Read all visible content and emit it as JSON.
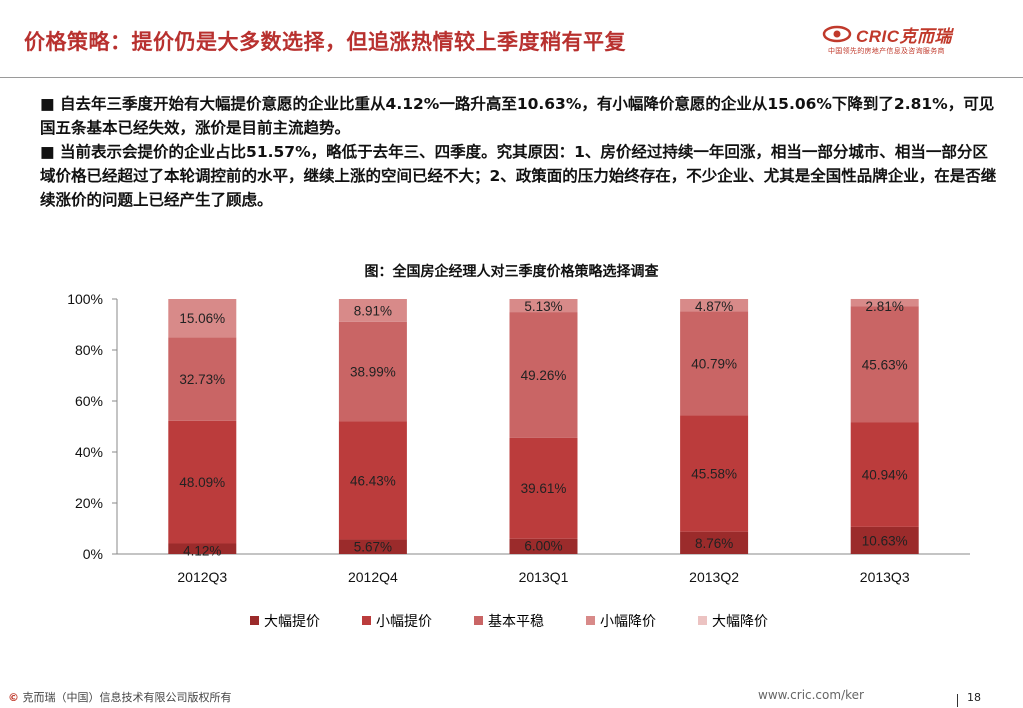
{
  "header": {
    "title": "价格策略：提价仍是大多数选择，但追涨热情较上季度稍有平复",
    "logo_text": "CRIC克而瑞",
    "logo_subtitle": "中国领先的房地产信息及咨询服务商"
  },
  "body": {
    "paragraphs": [
      "■ 自去年三季度开始有大幅提价意愿的企业比重从4.12%一路升高至10.63%，有小幅降价意愿的企业从15.06%下降到了2.81%，可见国五条基本已经失效，涨价是目前主流趋势。",
      "■ 当前表示会提价的企业占比51.57%，略低于去年三、四季度。究其原因：1、房价经过持续一年回涨，相当一部分城市、相当一部分区域价格已经超过了本轮调控前的水平，继续上涨的空间已经不大；2、政策面的压力始终存在，不少企业、尤其是全国性品牌企业，在是否继续涨价的问题上已经产生了顾虑。"
    ]
  },
  "chart_data": {
    "type": "bar",
    "stacked": true,
    "title": "图：全国房企经理人对三季度价格策略选择调查",
    "categories": [
      "2012Q3",
      "2012Q4",
      "2013Q1",
      "2013Q2",
      "2013Q3"
    ],
    "series": [
      {
        "name": "大幅提价",
        "color": "#9b2b2b",
        "values": [
          4.12,
          5.67,
          6.0,
          8.76,
          10.63
        ],
        "labels": [
          "4.12%",
          "5.67%",
          "6.00%",
          "8.76%",
          "10.63%"
        ]
      },
      {
        "name": "小幅提价",
        "color": "#bb3c3c",
        "values": [
          48.09,
          46.43,
          39.61,
          45.58,
          40.94
        ],
        "labels": [
          "48.09%",
          "46.43%",
          "39.61%",
          "45.58%",
          "40.94%"
        ]
      },
      {
        "name": "基本平稳",
        "color": "#c96565",
        "values": [
          32.73,
          38.99,
          49.26,
          40.79,
          45.63
        ],
        "labels": [
          "32.73%",
          "38.99%",
          "49.26%",
          "40.79%",
          "45.63%"
        ]
      },
      {
        "name": "小幅降价",
        "color": "#d88a89",
        "values": [
          15.06,
          8.91,
          5.13,
          4.87,
          2.81
        ],
        "labels": [
          "15.06%",
          "8.91%",
          "5.13%",
          "4.87%",
          "2.81%"
        ]
      },
      {
        "name": "大幅降价",
        "color": "#ecc3c2",
        "values": [
          0,
          0,
          0,
          0,
          0
        ],
        "labels": [
          "",
          "",
          "",
          "",
          ""
        ]
      }
    ],
    "yticks": [
      "0%",
      "20%",
      "40%",
      "60%",
      "80%",
      "100%"
    ],
    "ylim": [
      0,
      100
    ],
    "grid": false,
    "legend_position": "bottom"
  },
  "footer": {
    "copyright_symbol": "©",
    "copyright": " 克而瑞（中国）信息技术有限公司版权所有",
    "url": "www.cric.com/ker",
    "page": "18"
  }
}
